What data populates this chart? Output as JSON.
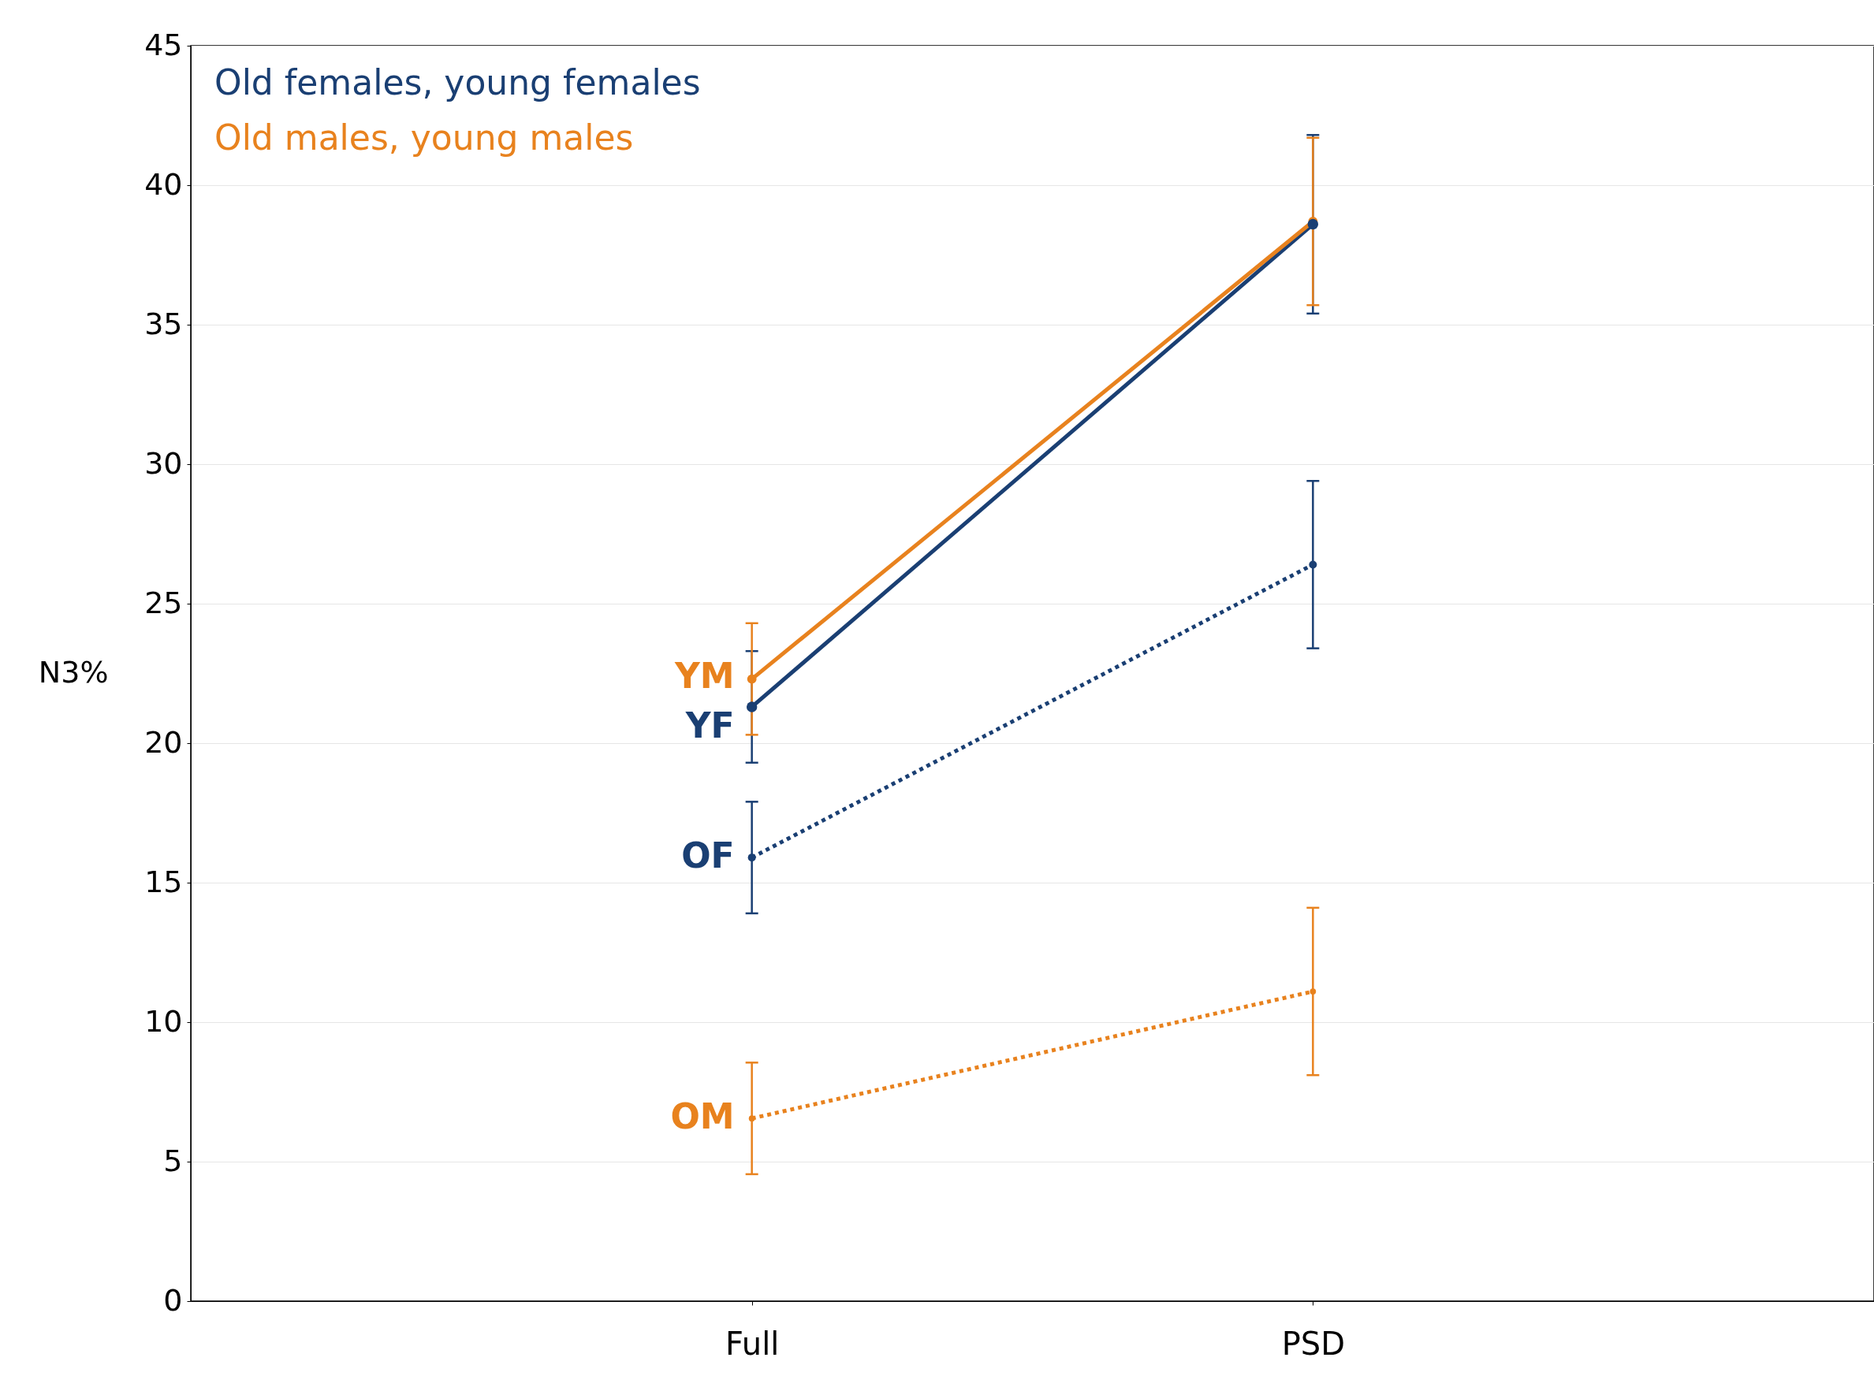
{
  "chart_data": {
    "type": "line",
    "ylabel": "N3%",
    "categories": [
      "Full",
      "PSD"
    ],
    "ylim": [
      0,
      45
    ],
    "yticks": [
      0,
      5,
      10,
      15,
      20,
      25,
      30,
      35,
      40,
      45
    ],
    "grid": "y",
    "marker": "circle",
    "annotations": [
      "Old females, young females",
      "Old males, young males"
    ],
    "series": [
      {
        "name": "YF",
        "color": "#1a3f73",
        "values": [
          21.3,
          38.6
        ],
        "errors": [
          2,
          3.2
        ],
        "line_style": "solid"
      },
      {
        "name": "YM",
        "color": "#e8821e",
        "values": [
          22.3,
          38.7
        ],
        "errors": [
          2,
          3
        ],
        "line_style": "solid"
      },
      {
        "name": "OF",
        "color": "#1a3f73",
        "values": [
          15.9,
          26.4
        ],
        "errors": [
          2,
          3
        ],
        "line_style": "dotted"
      },
      {
        "name": "OM",
        "color": "#e8821e",
        "values": [
          6.55,
          11.1
        ],
        "errors": [
          2,
          3
        ],
        "line_style": "dotted"
      }
    ]
  }
}
